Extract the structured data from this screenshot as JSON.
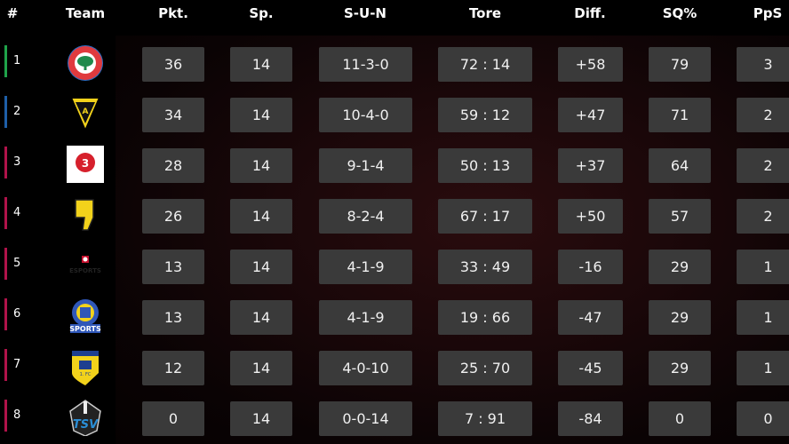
{
  "headers": [
    "#",
    "Team",
    "Pkt.",
    "Sp.",
    "S-U-N",
    "Tore",
    "Diff.",
    "SQ%",
    "PpS"
  ],
  "rows": [
    {
      "rank": "1",
      "bar_color": "#1fa34a",
      "logo": "esc-06-logo",
      "pkt": "36",
      "sp": "14",
      "sun": "11-3-0",
      "tore": "72 : 14",
      "diff": "+58",
      "sq": "79",
      "pps": "3"
    },
    {
      "rank": "2",
      "bar_color": "#1e5fa8",
      "logo": "alemannia-logo",
      "pkt": "34",
      "sp": "14",
      "sun": "10-4-0",
      "tore": "59 : 12",
      "diff": "+47",
      "sq": "71",
      "pps": "2"
    },
    {
      "rank": "3",
      "bar_color": "#b0134a",
      "logo": "wuppertal-logo",
      "pkt": "28",
      "sp": "14",
      "sun": "9-1-4",
      "tore": "50 : 13",
      "diff": "+37",
      "sq": "64",
      "pps": "2"
    },
    {
      "rank": "4",
      "bar_color": "#b0134a",
      "logo": "yellow-shield-logo",
      "pkt": "26",
      "sp": "14",
      "sun": "8-2-4",
      "tore": "67 : 17",
      "diff": "+50",
      "sq": "57",
      "pps": "2"
    },
    {
      "rank": "5",
      "bar_color": "#b0134a",
      "logo": "bayer-esports-logo",
      "pkt": "13",
      "sp": "14",
      "sun": "4-1-9",
      "tore": "33 : 49",
      "diff": "-16",
      "sq": "29",
      "pps": "1"
    },
    {
      "rank": "6",
      "bar_color": "#b0134a",
      "logo": "esports-crest-logo",
      "pkt": "13",
      "sp": "14",
      "sun": "4-1-9",
      "tore": "19 : 66",
      "diff": "-47",
      "sq": "29",
      "pps": "1"
    },
    {
      "rank": "7",
      "bar_color": "#b0134a",
      "logo": "1fc-dueren-logo",
      "pkt": "12",
      "sp": "14",
      "sun": "4-0-10",
      "tore": "25 : 70",
      "diff": "-45",
      "sq": "29",
      "pps": "1"
    },
    {
      "rank": "8",
      "bar_color": "#b0134a",
      "logo": "tsv-logo",
      "pkt": "0",
      "sp": "14",
      "sun": "0-0-14",
      "tore": "7 : 91",
      "diff": "-84",
      "sq": "0",
      "pps": "0"
    }
  ]
}
